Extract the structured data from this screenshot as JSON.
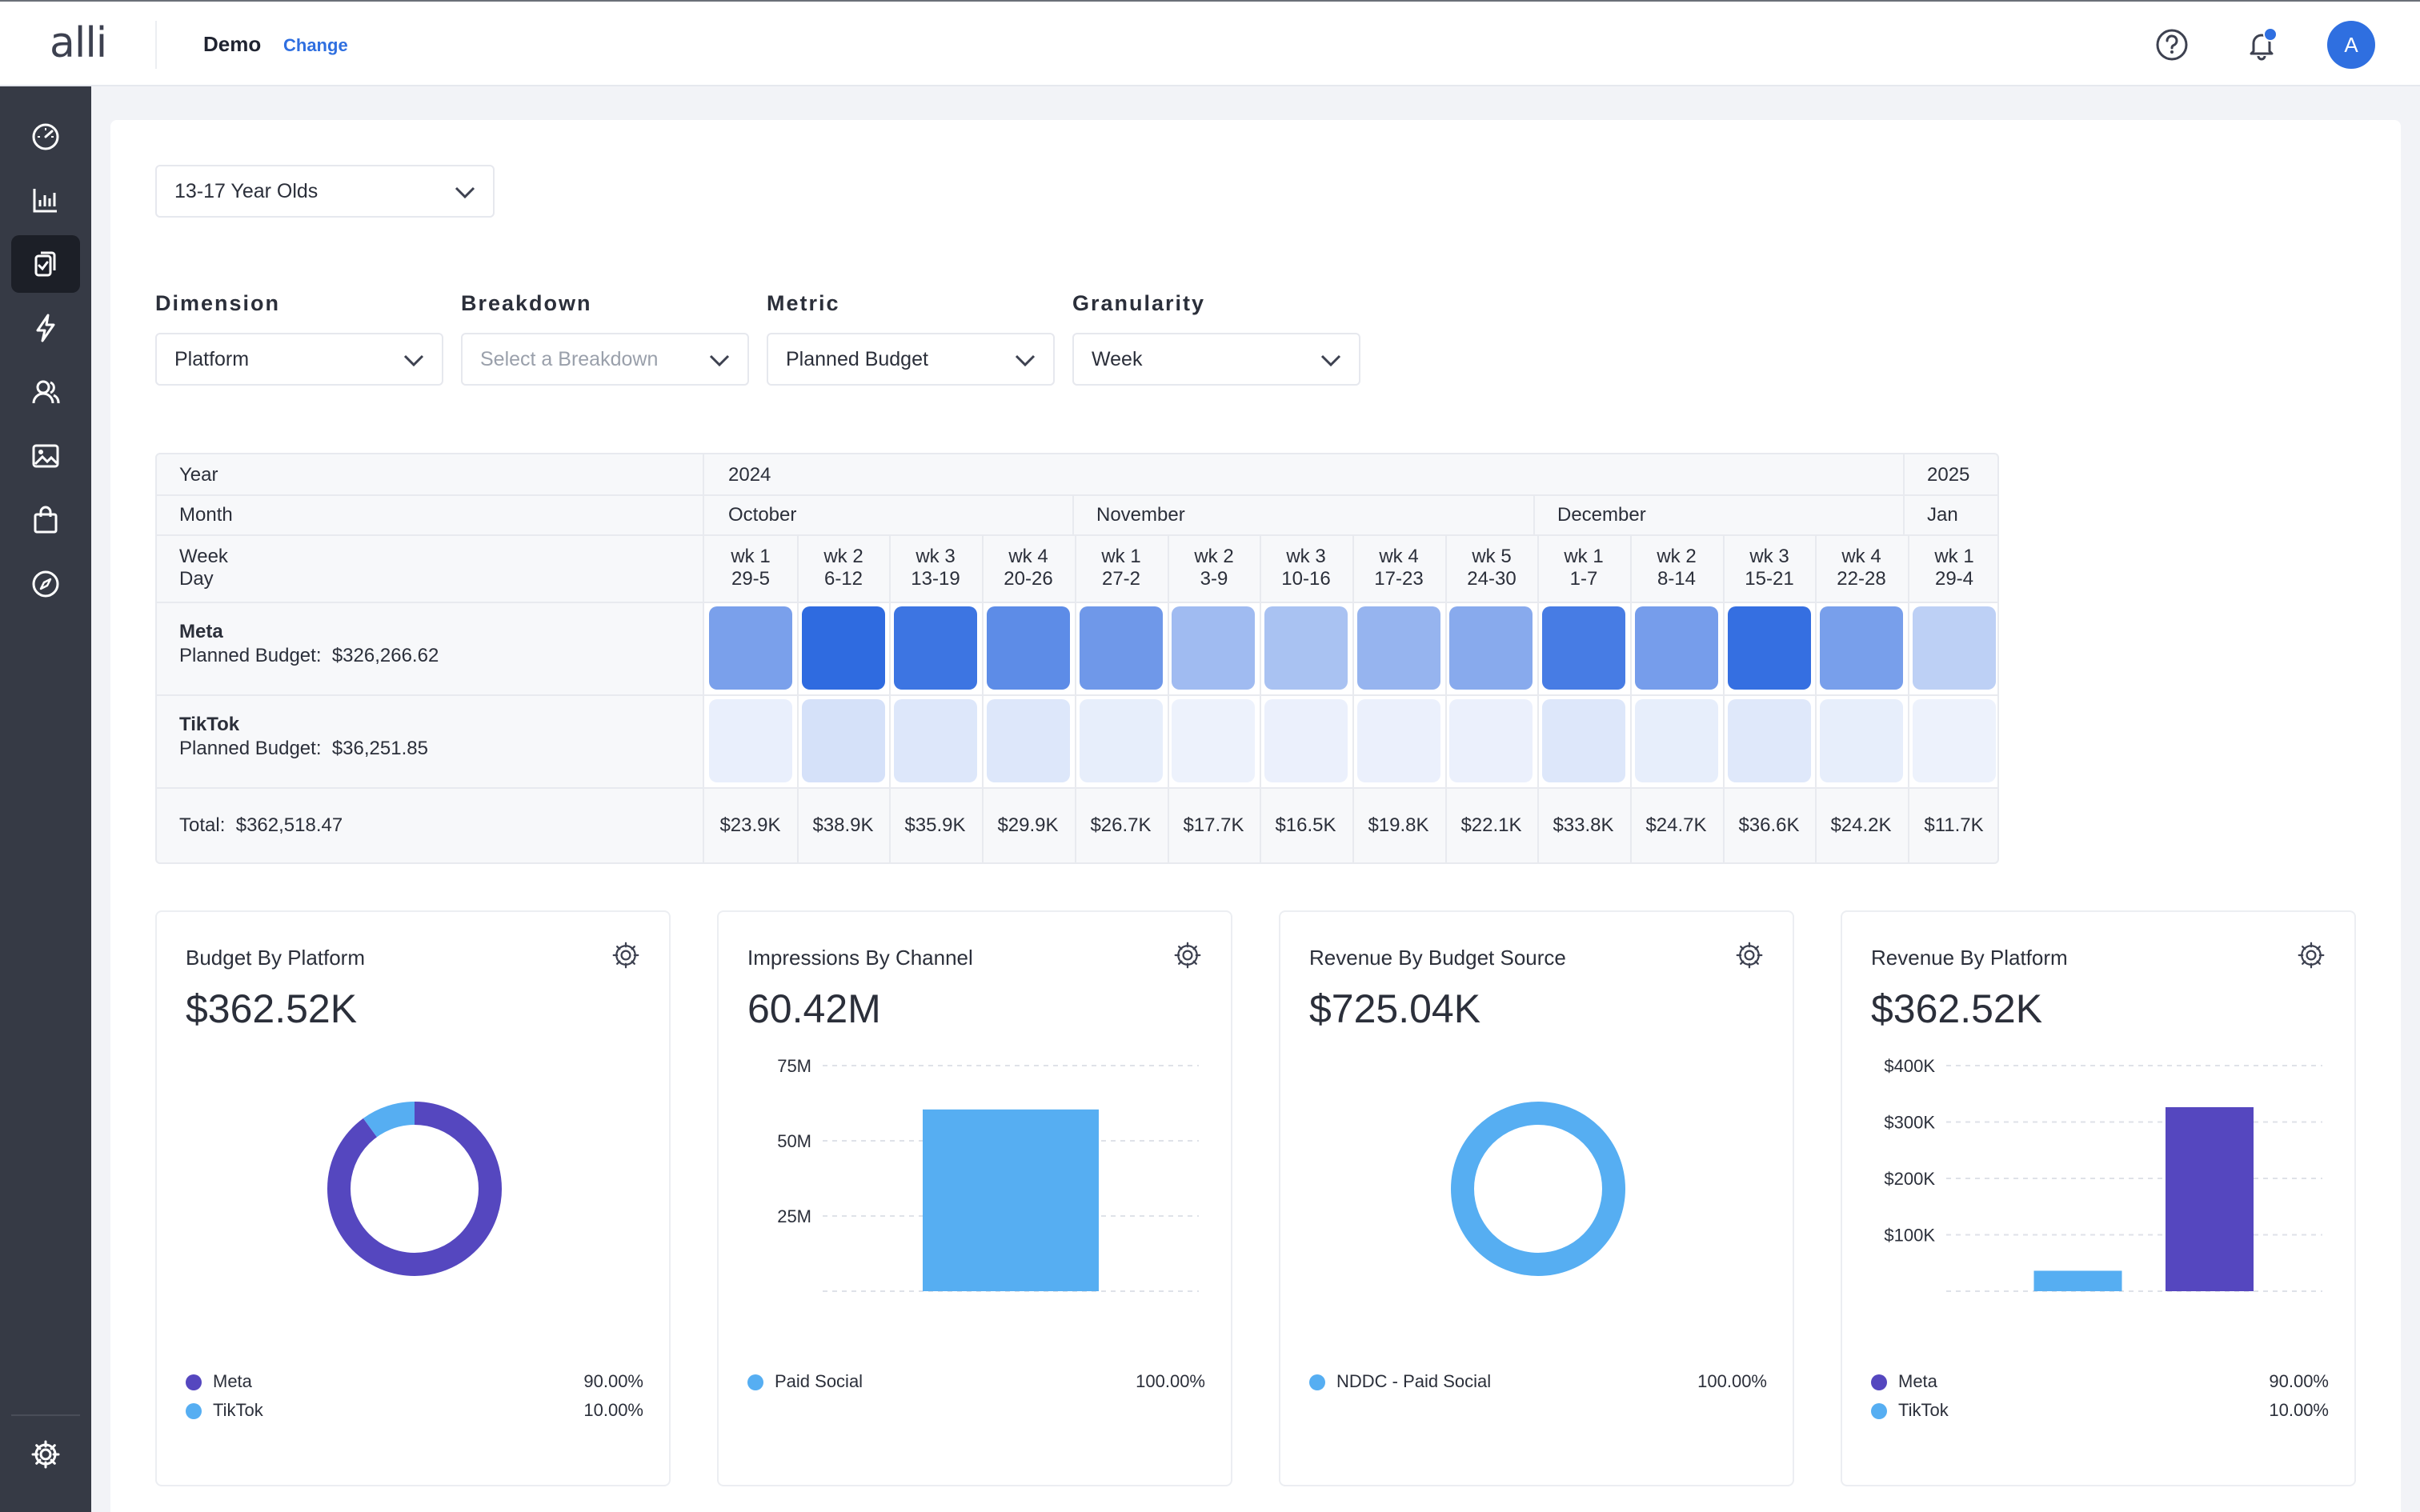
{
  "app": {
    "logo": "alli",
    "org_name": "Demo",
    "org_change": "Change",
    "avatar_initial": "A"
  },
  "filters": {
    "audience_value": "13-17 Year Olds",
    "dimension_label": "Dimension",
    "dimension_value": "Platform",
    "breakdown_label": "Breakdown",
    "breakdown_placeholder": "Select a Breakdown",
    "metric_label": "Metric",
    "metric_value": "Planned Budget",
    "granularity_label": "Granularity",
    "granularity_value": "Week"
  },
  "grid": {
    "year_label": "Year",
    "month_label": "Month",
    "week_label": "Week",
    "day_label": "Day",
    "year_2024": "2024",
    "year_2025": "2025",
    "months": [
      "October",
      "November",
      "December",
      "Jan"
    ],
    "weeks": [
      "wk 1",
      "wk 2",
      "wk 3",
      "wk 4",
      "wk 1",
      "wk 2",
      "wk 3",
      "wk 4",
      "wk 5",
      "wk 1",
      "wk 2",
      "wk 3",
      "wk 4",
      "wk 1"
    ],
    "days": [
      "29-5",
      "6-12",
      "13-19",
      "20-26",
      "27-2",
      "3-9",
      "10-16",
      "17-23",
      "24-30",
      "1-7",
      "8-14",
      "15-21",
      "22-28",
      "29-4"
    ],
    "rows": [
      {
        "name": "Meta",
        "budget_label": "Planned Budget:",
        "budget_value": "$326,266.62",
        "levels": [
          0.62,
          1.0,
          0.93,
          0.77,
          0.68,
          0.43,
          0.38,
          0.48,
          0.55,
          0.88,
          0.64,
          0.97,
          0.63,
          0.28
        ]
      },
      {
        "name": "TikTok",
        "budget_label": "Planned Budget:",
        "budget_value": "$36,251.85",
        "levels": [
          0.06,
          0.16,
          0.12,
          0.12,
          0.07,
          0.04,
          0.05,
          0.05,
          0.05,
          0.12,
          0.07,
          0.11,
          0.07,
          0.04
        ]
      }
    ],
    "total_label": "Total:",
    "total_value": "$362,518.47",
    "totals": [
      "$23.9K",
      "$38.9K",
      "$35.9K",
      "$29.9K",
      "$26.7K",
      "$17.7K",
      "$16.5K",
      "$19.8K",
      "$22.1K",
      "$33.8K",
      "$24.7K",
      "$36.6K",
      "$24.2K",
      "$11.7K"
    ],
    "heat_color": "#2f6be0"
  },
  "cards": [
    {
      "title": "Budget By Platform",
      "value": "$362.52K",
      "legend": [
        {
          "name": "Meta",
          "pct": "90.00%"
        },
        {
          "name": "TikTok",
          "pct": "10.00%"
        }
      ]
    },
    {
      "title": "Impressions By Channel",
      "value": "60.42M",
      "legend": [
        {
          "name": "Paid Social",
          "pct": "100.00%"
        }
      ]
    },
    {
      "title": "Revenue By Budget Source",
      "value": "$725.04K",
      "legend": [
        {
          "name": "NDDC - Paid Social",
          "pct": "100.00%"
        }
      ]
    },
    {
      "title": "Revenue By Platform",
      "value": "$362.52K",
      "legend": [
        {
          "name": "Meta",
          "pct": "90.00%"
        },
        {
          "name": "TikTok",
          "pct": "10.00%"
        }
      ]
    }
  ],
  "colors": {
    "meta": "#5547bf",
    "tiktok": "#56aef2",
    "accent": "#2f6fe0"
  },
  "chart_data": [
    {
      "type": "pie",
      "title": "Budget By Platform",
      "categories": [
        "Meta",
        "TikTok"
      ],
      "values": [
        90.0,
        10.0
      ],
      "donut": true
    },
    {
      "type": "bar",
      "title": "Impressions By Channel",
      "categories": [
        "Paid Social"
      ],
      "values": [
        60.42
      ],
      "ylim": [
        0,
        75
      ],
      "yticks": [
        "25M",
        "50M",
        "75M"
      ],
      "ytick_values": [
        25,
        50,
        75
      ]
    },
    {
      "type": "pie",
      "title": "Revenue By Budget Source",
      "categories": [
        "NDDC - Paid Social"
      ],
      "values": [
        100.0
      ],
      "donut": true
    },
    {
      "type": "bar",
      "title": "Revenue By Platform",
      "categories": [
        "TikTok",
        "Meta"
      ],
      "values": [
        36.25,
        326.27
      ],
      "ylim": [
        0,
        400
      ],
      "yticks": [
        "$100K",
        "$200K",
        "$300K",
        "$400K"
      ],
      "ytick_values": [
        100,
        200,
        300,
        400
      ]
    }
  ]
}
